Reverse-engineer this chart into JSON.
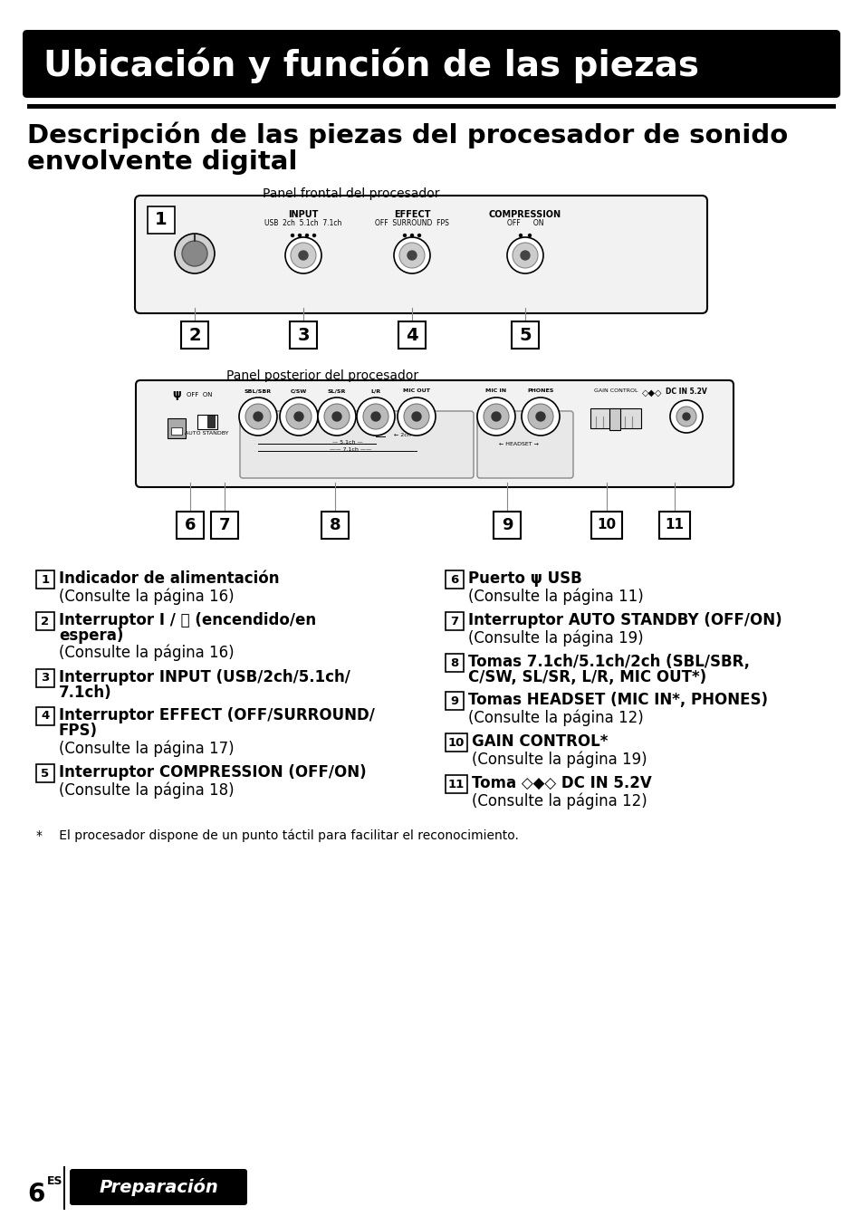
{
  "page_bg": "#ffffff",
  "header_bg": "#000000",
  "header_text": "Ubicación y función de las piezas",
  "header_text_color": "#ffffff",
  "section_title_line1": "Descripción de las piezas del procesador de sonido",
  "section_title_line2": "envolvente digital",
  "panel_front_label": "Panel frontal del procesador",
  "panel_rear_label": "Panel posterior del procesador",
  "footer_note": "*  El procesador dispone de un punto táctil para facilitar el reconocimiento.",
  "page_num": "6",
  "page_num_sup": "ES",
  "footer_tab_text": "Preparación",
  "items_left": [
    {
      "num": "1",
      "bold": "Indicador de alimentación",
      "sub": "(Consulte la página 16)"
    },
    {
      "num": "2",
      "bold": "Interruptor I / ⏻ (encendido/en\nespera)",
      "sub": "(Consulte la página 16)"
    },
    {
      "num": "3",
      "bold": "Interruptor INPUT (USB/2ch/5.1ch/\n7.1ch)",
      "sub": null
    },
    {
      "num": "4",
      "bold": "Interruptor EFFECT (OFF/SURROUND/\nFPS)",
      "sub": "(Consulte la página 17)"
    },
    {
      "num": "5",
      "bold": "Interruptor COMPRESSION (OFF/ON)",
      "sub": "(Consulte la página 18)"
    }
  ],
  "items_right": [
    {
      "num": "6",
      "bold": "Puerto ψ USB",
      "sub": "(Consulte la página 11)"
    },
    {
      "num": "7",
      "bold": "Interruptor AUTO STANDBY (OFF/ON)",
      "sub": "(Consulte la página 19)"
    },
    {
      "num": "8",
      "bold": "Tomas 7.1ch/5.1ch/2ch (SBL/SBR,\nC/SW, SL/SR, L/R, MIC OUT*)",
      "sub": null
    },
    {
      "num": "9",
      "bold": "Tomas HEADSET (MIC IN*, PHONES)",
      "sub": "(Consulte la página 12)"
    },
    {
      "num": "10",
      "bold": "GAIN CONTROL*",
      "sub": "(Consulte la página 19)"
    },
    {
      "num": "11",
      "bold": "Toma ◇◆◇ DC IN 5.2V",
      "sub": "(Consulte la página 12)"
    }
  ]
}
